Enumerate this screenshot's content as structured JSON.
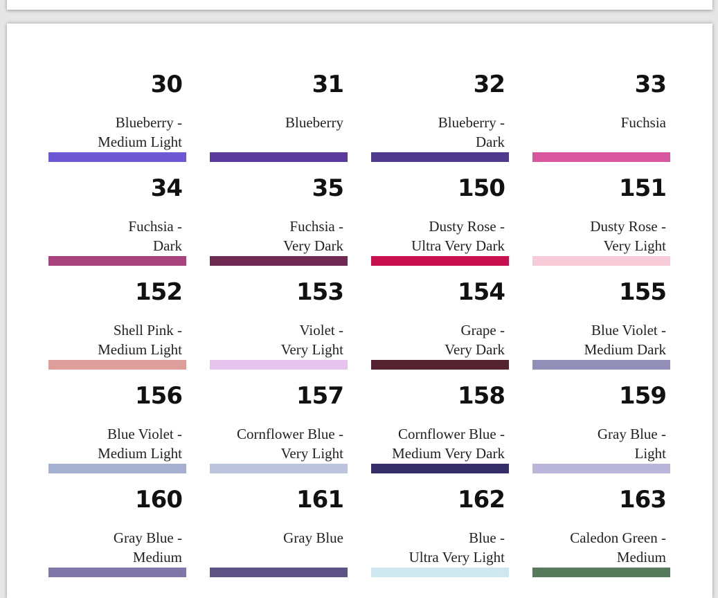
{
  "swatches": [
    {
      "num": "30",
      "line1": "Blueberry -",
      "line2": "Medium Light",
      "color": "#6e57d3"
    },
    {
      "num": "31",
      "line1": "Blueberry",
      "line2": "",
      "color": "#5b3a9e"
    },
    {
      "num": "32",
      "line1": "Blueberry -",
      "line2": "Dark",
      "color": "#4f3a8e"
    },
    {
      "num": "33",
      "line1": "Fuchsia",
      "line2": "",
      "color": "#d9579e"
    },
    {
      "num": "34",
      "line1": "Fuchsia -",
      "line2": "Dark",
      "color": "#a8427a"
    },
    {
      "num": "35",
      "line1": "Fuchsia -",
      "line2": "Very Dark",
      "color": "#6e2a52"
    },
    {
      "num": "150",
      "line1": "Dusty Rose -",
      "line2": "Ultra Very Dark",
      "color": "#c8104f"
    },
    {
      "num": "151",
      "line1": "Dusty Rose -",
      "line2": "Very Light",
      "color": "#f8cbd8"
    },
    {
      "num": "152",
      "line1": "Shell Pink -",
      "line2": "Medium Light",
      "color": "#dd9e9c"
    },
    {
      "num": "153",
      "line1": "Violet -",
      "line2": "Very Light",
      "color": "#e5c3ec"
    },
    {
      "num": "154",
      "line1": "Grape -",
      "line2": "Very Dark",
      "color": "#55222f"
    },
    {
      "num": "155",
      "line1": "Blue Violet -",
      "line2": "Medium Dark",
      "color": "#918fb8"
    },
    {
      "num": "156",
      "line1": "Blue Violet -",
      "line2": "Medium Light",
      "color": "#a5b0d0"
    },
    {
      "num": "157",
      "line1": "Cornflower Blue -",
      "line2": "Very Light",
      "color": "#bbc4dc"
    },
    {
      "num": "158",
      "line1": "Cornflower Blue -",
      "line2": "Medium Very Dark",
      "color": "#352f69"
    },
    {
      "num": "159",
      "line1": "Gray Blue -",
      "line2": "Light",
      "color": "#bab5da"
    },
    {
      "num": "160",
      "line1": "Gray Blue -",
      "line2": "Medium",
      "color": "#8077a9"
    },
    {
      "num": "161",
      "line1": "Gray Blue",
      "line2": "",
      "color": "#5d5385"
    },
    {
      "num": "162",
      "line1": "Blue -",
      "line2": "Ultra Very Light",
      "color": "#cfe8f0"
    },
    {
      "num": "163",
      "line1": "Caledon Green -",
      "line2": "Medium",
      "color": "#587a5c"
    }
  ]
}
